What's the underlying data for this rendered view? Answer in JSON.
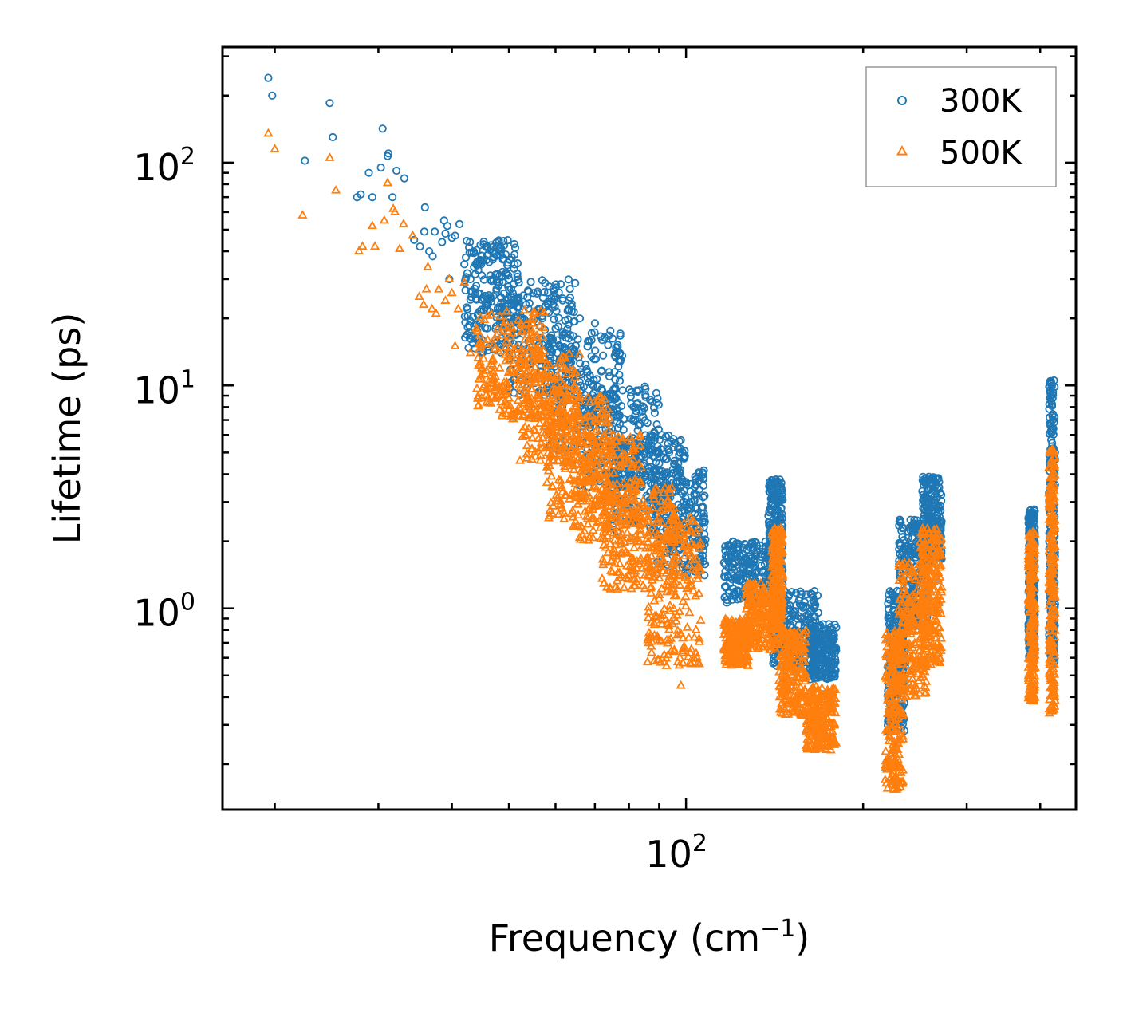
{
  "chart_data": {
    "type": "scatter",
    "title": "",
    "xlabel": "Frequency (cm",
    "xlabel_sup": "−1",
    "xlabel_end": ")",
    "ylabel": "Lifetime (ps)",
    "xscale": "log",
    "yscale": "log",
    "xlim": [
      16.3,
      460
    ],
    "ylim": [
      0.125,
      330
    ],
    "x_major_ticks": [
      {
        "value": 100,
        "base": "10",
        "exp": "2"
      }
    ],
    "y_major_ticks": [
      {
        "value": 1,
        "base": "10",
        "exp": "0"
      },
      {
        "value": 10,
        "base": "10",
        "exp": "1"
      },
      {
        "value": 100,
        "base": "10",
        "exp": "2"
      }
    ],
    "legend_position": "top-right",
    "series": [
      {
        "name": "300K",
        "marker": "circle",
        "color": "#1f77b4",
        "points": [
          [
            19.5,
            240
          ],
          [
            19.8,
            200
          ],
          [
            22.5,
            102
          ],
          [
            24.8,
            185
          ],
          [
            25.1,
            130
          ],
          [
            27.6,
            70
          ],
          [
            28.0,
            72
          ],
          [
            28.9,
            90
          ],
          [
            29.3,
            70
          ],
          [
            30.3,
            95
          ],
          [
            30.5,
            142
          ],
          [
            31.1,
            107
          ],
          [
            31.2,
            110
          ],
          [
            31.7,
            70
          ],
          [
            32.2,
            92
          ],
          [
            33.2,
            85
          ],
          [
            34.5,
            45
          ],
          [
            35.3,
            42
          ],
          [
            35.9,
            49
          ],
          [
            36.0,
            63
          ],
          [
            36.6,
            40
          ],
          [
            37.1,
            38
          ],
          [
            37.4,
            49
          ],
          [
            38.5,
            44
          ],
          [
            38.8,
            55
          ],
          [
            39.0,
            48
          ],
          [
            39.3,
            52
          ],
          [
            39.6,
            30
          ],
          [
            40.0,
            46
          ],
          [
            40.5,
            47
          ],
          [
            41.2,
            53
          ],
          [
            42.0,
            35
          ],
          [
            42.5,
            22
          ],
          [
            43.0,
            30
          ],
          [
            43.6,
            34
          ],
          [
            44.0,
            28
          ],
          [
            45.0,
            36
          ],
          [
            46.0,
            25
          ],
          [
            47.0,
            30
          ],
          [
            48.0,
            28
          ],
          [
            49.0,
            37
          ],
          [
            50.0,
            20
          ],
          [
            51.0,
            25
          ],
          [
            52.0,
            29
          ],
          [
            54.0,
            18
          ],
          [
            55.0,
            26
          ],
          [
            57.0,
            20
          ],
          [
            58.0,
            16
          ],
          [
            60.0,
            18
          ],
          [
            62.0,
            17
          ],
          [
            64.0,
            14
          ],
          [
            66.0,
            20
          ],
          [
            68.0,
            15
          ],
          [
            70.0,
            19
          ],
          [
            72.0,
            16
          ],
          [
            74.0,
            11.5
          ],
          [
            78.0,
            9.5
          ],
          [
            82.0,
            8
          ],
          [
            86.0,
            6.8
          ],
          [
            90.0,
            5
          ],
          [
            95.0,
            4.2
          ],
          [
            100.0,
            3.6
          ],
          [
            104.0,
            2.8
          ]
        ],
        "bands": [
          {
            "x": [
              42,
              52
            ],
            "y": [
              14,
              45
            ]
          },
          {
            "x": [
              50,
              65
            ],
            "y": [
              9,
              30
            ]
          },
          {
            "x": [
              58,
              78
            ],
            "y": [
              5,
              18
            ]
          },
          {
            "x": [
              66,
              90
            ],
            "y": [
              3.5,
              10
            ]
          },
          {
            "x": [
              75,
              100
            ],
            "y": [
              2.2,
              6
            ]
          },
          {
            "x": [
              88,
              108
            ],
            "y": [
              1.4,
              4.2
            ]
          },
          {
            "x": [
              116,
              140
            ],
            "y": [
              1.05,
              2.0
            ]
          },
          {
            "x": [
              138,
              146
            ],
            "y": [
              1.2,
              3.8
            ]
          },
          {
            "x": [
              140,
              168
            ],
            "y": [
              0.55,
              1.2
            ]
          },
          {
            "x": [
              162,
              180
            ],
            "y": [
              0.48,
              0.85
            ]
          },
          {
            "x": [
              220,
              236
            ],
            "y": [
              0.28,
              1.2
            ]
          },
          {
            "x": [
              230,
              258
            ],
            "y": [
              0.8,
              2.5
            ]
          },
          {
            "x": [
              252,
              272
            ],
            "y": [
              1.6,
              3.9
            ]
          },
          {
            "x": [
              382,
              392
            ],
            "y": [
              0.6,
              2.8
            ]
          },
          {
            "x": [
              414,
              424
            ],
            "y": [
              0.55,
              10.8
            ]
          }
        ]
      },
      {
        "name": "500K",
        "marker": "triangle",
        "color": "#ff7f0e",
        "points": [
          [
            19.5,
            135
          ],
          [
            20.0,
            115
          ],
          [
            22.3,
            58
          ],
          [
            24.8,
            105
          ],
          [
            25.4,
            75
          ],
          [
            27.8,
            40
          ],
          [
            28.2,
            42
          ],
          [
            29.3,
            52
          ],
          [
            29.6,
            42
          ],
          [
            30.7,
            55
          ],
          [
            31.1,
            81
          ],
          [
            31.8,
            62
          ],
          [
            32.0,
            60
          ],
          [
            32.6,
            41
          ],
          [
            33.1,
            53
          ],
          [
            34.3,
            47
          ],
          [
            35.2,
            25
          ],
          [
            35.8,
            23
          ],
          [
            36.2,
            27
          ],
          [
            36.4,
            34
          ],
          [
            37.0,
            22
          ],
          [
            37.6,
            21
          ],
          [
            38.0,
            27
          ],
          [
            39.0,
            24
          ],
          [
            39.6,
            30
          ],
          [
            40.0,
            26
          ],
          [
            40.5,
            15
          ],
          [
            41.0,
            22
          ],
          [
            42.0,
            29
          ],
          [
            43.0,
            14
          ],
          [
            44.0,
            18
          ],
          [
            45.0,
            12
          ],
          [
            46.0,
            16
          ],
          [
            47.0,
            13
          ],
          [
            48.0,
            9
          ],
          [
            50.0,
            14
          ],
          [
            52.0,
            10
          ],
          [
            54.0,
            8
          ],
          [
            56.0,
            11
          ],
          [
            58.0,
            7.2
          ],
          [
            60.0,
            9.5
          ],
          [
            62.0,
            6.5
          ],
          [
            65.0,
            8
          ],
          [
            68.0,
            5.5
          ],
          [
            70.0,
            7
          ],
          [
            74.0,
            5
          ],
          [
            78.0,
            4.5
          ],
          [
            82.0,
            3.8
          ],
          [
            86.0,
            2.5
          ],
          [
            90.0,
            1.8
          ],
          [
            95.0,
            1.2
          ],
          [
            98.0,
            0.45
          ],
          [
            104.0,
            0.8
          ]
        ],
        "bands": [
          {
            "x": [
              44,
              58
            ],
            "y": [
              7,
              22
            ]
          },
          {
            "x": [
              52,
              66
            ],
            "y": [
              4.5,
              14
            ]
          },
          {
            "x": [
              58,
              74
            ],
            "y": [
              2.5,
              9
            ]
          },
          {
            "x": [
              64,
              84
            ],
            "y": [
              2.0,
              6
            ]
          },
          {
            "x": [
              72,
              96
            ],
            "y": [
              1.2,
              3.5
            ]
          },
          {
            "x": [
              86,
              106
            ],
            "y": [
              0.55,
              2.6
            ]
          },
          {
            "x": [
              116,
              128
            ],
            "y": [
              0.55,
              0.9
            ]
          },
          {
            "x": [
              126,
              144
            ],
            "y": [
              0.65,
              1.3
            ]
          },
          {
            "x": [
              140,
              146
            ],
            "y": [
              0.8,
              2.3
            ]
          },
          {
            "x": [
              144,
              160
            ],
            "y": [
              0.33,
              0.8
            ]
          },
          {
            "x": [
              160,
              180
            ],
            "y": [
              0.23,
              0.45
            ]
          },
          {
            "x": [
              218,
              234
            ],
            "y": [
              0.15,
              0.8
            ]
          },
          {
            "x": [
              230,
              256
            ],
            "y": [
              0.4,
              1.6
            ]
          },
          {
            "x": [
              250,
              272
            ],
            "y": [
              0.55,
              2.3
            ]
          },
          {
            "x": [
              382,
              392
            ],
            "y": [
              0.38,
              2.2
            ]
          },
          {
            "x": [
              414,
              424
            ],
            "y": [
              0.33,
              5.2
            ]
          }
        ]
      }
    ]
  }
}
